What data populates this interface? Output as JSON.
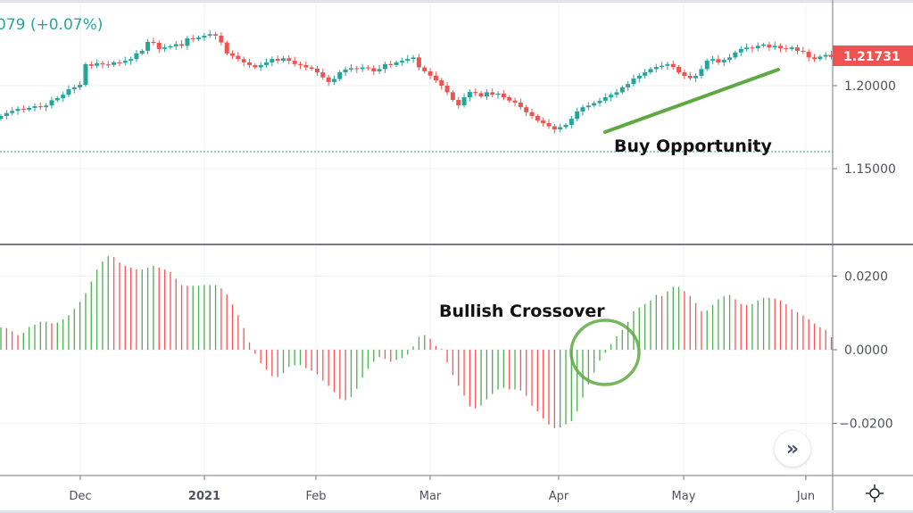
{
  "header": {
    "legend_text": "079 (+0.07%)"
  },
  "annotations": {
    "buy_opportunity": "Buy Opportunity",
    "bullish_crossover": "Bullish Crossover"
  },
  "colors": {
    "up": "#26a69a",
    "down": "#ef5350",
    "hist_up": "#4caf50",
    "hist_down": "#ff5252",
    "annotation": "#5fa843",
    "hline": "#26a69a"
  },
  "icons": {
    "scroll_button": "double-chevron-right-icon",
    "settings": "sun-gear-icon"
  },
  "scroll_label": "»",
  "chart_data": [
    {
      "type": "candlestick",
      "price_axis": {
        "ticks": [
          "1.20000",
          "1.15000"
        ],
        "tick_values": [
          1.2,
          1.15
        ],
        "current_price_label": "1.21731",
        "current_price": 1.21731
      },
      "horizontal_line": 1.1602,
      "grid": true,
      "first_open": 1.18,
      "close": [
        1.1817,
        1.1835,
        1.1848,
        1.186,
        1.1855,
        1.1866,
        1.1876,
        1.187,
        1.188,
        1.1912,
        1.1925,
        1.1945,
        1.1978,
        1.199,
        1.2005,
        1.2129,
        1.212,
        1.2135,
        1.2128,
        1.2125,
        1.214,
        1.2138,
        1.215,
        1.216,
        1.2194,
        1.221,
        1.2264,
        1.2258,
        1.2221,
        1.223,
        1.2237,
        1.225,
        1.224,
        1.2285,
        1.228,
        1.229,
        1.2301,
        1.231,
        1.2301,
        1.226,
        1.2194,
        1.218,
        1.216,
        1.214,
        1.2124,
        1.211,
        1.2124,
        1.214,
        1.2161,
        1.215,
        1.2165,
        1.215,
        1.213,
        1.2124,
        1.211,
        1.2102,
        1.208,
        1.205,
        1.2022,
        1.204,
        1.208,
        1.2097,
        1.2105,
        1.21,
        1.211,
        1.2105,
        1.2086,
        1.21,
        1.213,
        1.2124,
        1.214,
        1.215,
        1.2161,
        1.217,
        1.211,
        1.2086,
        1.206,
        1.2032,
        1.2,
        1.196,
        1.1914,
        1.1882,
        1.193,
        1.1962,
        1.1955,
        1.1935,
        1.196,
        1.1945,
        1.1952,
        1.193,
        1.191,
        1.1898,
        1.187,
        1.184,
        1.1817,
        1.179,
        1.1774,
        1.1755,
        1.1736,
        1.175,
        1.1763,
        1.18,
        1.1844,
        1.187,
        1.188,
        1.1895,
        1.1909,
        1.193,
        1.1945,
        1.196,
        1.199,
        1.201,
        1.2043,
        1.206,
        1.208,
        1.21,
        1.2113,
        1.212,
        1.213,
        1.2113,
        1.208,
        1.2059,
        1.2045,
        1.2059,
        1.21,
        1.2151,
        1.216,
        1.214,
        1.2155,
        1.217,
        1.22,
        1.2221,
        1.223,
        1.2225,
        1.224,
        1.2247,
        1.223,
        1.224,
        1.2225,
        1.222,
        1.223,
        1.221,
        1.2204,
        1.217,
        1.216,
        1.2175,
        1.2185,
        1.2173
      ]
    },
    {
      "type": "bar",
      "subtype": "histogram",
      "y_axis": {
        "ticks": [
          "0.0200",
          "0.0000",
          "−0.0200"
        ],
        "tick_values": [
          0.02,
          0,
          -0.02
        ]
      },
      "grid": true,
      "values": [
        0.0061,
        0.0059,
        0.005,
        0.004,
        0.0046,
        0.0062,
        0.0068,
        0.0076,
        0.0076,
        0.0072,
        0.0074,
        0.0083,
        0.0094,
        0.0111,
        0.013,
        0.0154,
        0.0185,
        0.0218,
        0.024,
        0.0254,
        0.0252,
        0.0237,
        0.0228,
        0.0223,
        0.0218,
        0.0218,
        0.0223,
        0.0228,
        0.0223,
        0.0218,
        0.0211,
        0.0193,
        0.0176,
        0.0174,
        0.0174,
        0.0174,
        0.0176,
        0.0176,
        0.0176,
        0.0167,
        0.015,
        0.0123,
        0.0094,
        0.0059,
        0.002,
        -0.0011,
        -0.0037,
        -0.0054,
        -0.0072,
        -0.0074,
        -0.0064,
        -0.0047,
        -0.0042,
        -0.0042,
        -0.005,
        -0.0057,
        -0.0067,
        -0.0084,
        -0.0098,
        -0.0115,
        -0.0133,
        -0.0137,
        -0.0128,
        -0.0106,
        -0.0076,
        -0.0052,
        -0.0033,
        -0.002,
        -0.0025,
        -0.0033,
        -0.0028,
        -0.0023,
        -0.0013,
        0.0009,
        0.0035,
        0.004,
        0.003,
        0.001,
        0.0002,
        -0.0035,
        -0.0069,
        -0.0098,
        -0.0125,
        -0.0154,
        -0.0159,
        -0.0152,
        -0.0135,
        -0.012,
        -0.0108,
        -0.0103,
        -0.0108,
        -0.0108,
        -0.0111,
        -0.0125,
        -0.0152,
        -0.0167,
        -0.0187,
        -0.0203,
        -0.0213,
        -0.0211,
        -0.0203,
        -0.0194,
        -0.0167,
        -0.013,
        -0.0094,
        -0.0062,
        -0.003,
        -0.0008,
        0.0015,
        0.0037,
        0.0054,
        0.0076,
        0.0105,
        0.0115,
        0.0124,
        0.0134,
        0.0149,
        0.0146,
        0.0159,
        0.0171,
        0.0171,
        0.0159,
        0.0146,
        0.0127,
        0.0105,
        0.0107,
        0.0122,
        0.0137,
        0.0146,
        0.0149,
        0.0137,
        0.0124,
        0.0122,
        0.0124,
        0.0134,
        0.0141,
        0.0141,
        0.0139,
        0.0134,
        0.0124,
        0.011,
        0.0102,
        0.0093,
        0.0083,
        0.0071,
        0.0061,
        0.0054,
        0.0034
      ]
    }
  ],
  "time_axis": {
    "labels": [
      "Dec",
      "2021",
      "Feb",
      "Mar",
      "Apr",
      "May",
      "Jun"
    ]
  }
}
